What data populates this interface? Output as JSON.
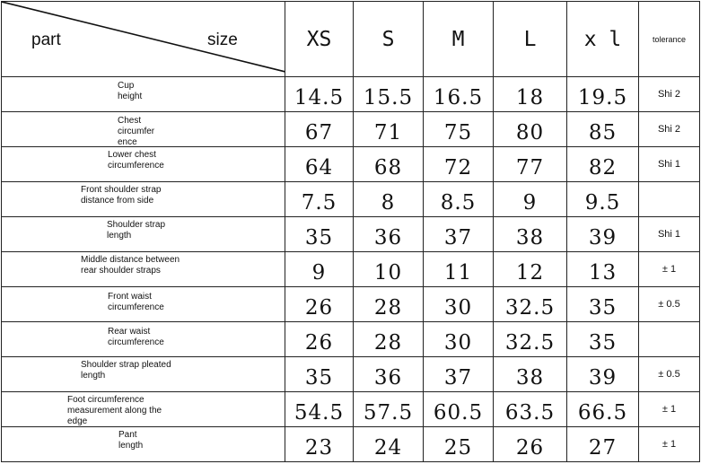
{
  "header": {
    "part_label": "part",
    "size_label": "size",
    "sizes": [
      "XS",
      "S",
      "M",
      "L",
      "x l"
    ],
    "tolerance_label": "tolerance"
  },
  "rows": [
    {
      "part": "Cup\nheight",
      "values": [
        "14.5",
        "15.5",
        "16.5",
        "18",
        "19.5"
      ],
      "tolerance": "Shi 2"
    },
    {
      "part": "Chest\ncircumfer\nence",
      "values": [
        "67",
        "71",
        "75",
        "80",
        "85"
      ],
      "tolerance": "Shi 2"
    },
    {
      "part": "Lower chest\ncircumference",
      "values": [
        "64",
        "68",
        "72",
        "77",
        "82"
      ],
      "tolerance": "Shi 1"
    },
    {
      "part": "Front shoulder strap\ndistance from side",
      "values": [
        "7.5",
        "8",
        "8.5",
        "9",
        "9.5"
      ],
      "tolerance": ""
    },
    {
      "part": "Shoulder strap\nlength",
      "values": [
        "35",
        "36",
        "37",
        "38",
        "39"
      ],
      "tolerance": "Shi 1"
    },
    {
      "part": "Middle distance between\nrear shoulder straps",
      "values": [
        "9",
        "10",
        "11",
        "12",
        "13"
      ],
      "tolerance": "± 1"
    },
    {
      "part": "Front waist\ncircumference",
      "values": [
        "26",
        "28",
        "30",
        "32.5",
        "35"
      ],
      "tolerance": "± 0.5"
    },
    {
      "part": "Rear waist\ncircumference",
      "values": [
        "26",
        "28",
        "30",
        "32.5",
        "35"
      ],
      "tolerance": ""
    },
    {
      "part": "Shoulder strap pleated\nlength",
      "values": [
        "35",
        "36",
        "37",
        "38",
        "39"
      ],
      "tolerance": "± 0.5"
    },
    {
      "part": "Foot circumference\nmeasurement along the\nedge",
      "values": [
        "54.5",
        "57.5",
        "60.5",
        "63.5",
        "66.5"
      ],
      "tolerance": "± 1"
    },
    {
      "part": "Pant\nlength",
      "values": [
        "23",
        "24",
        "25",
        "26",
        "27"
      ],
      "tolerance": "± 1"
    }
  ]
}
